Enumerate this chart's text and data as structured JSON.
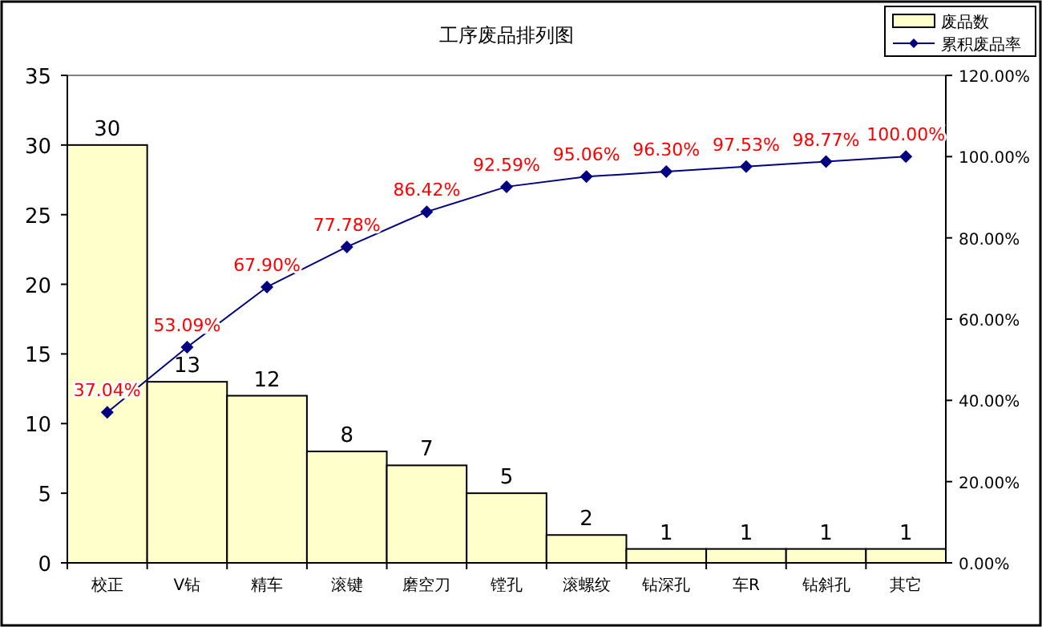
{
  "chart_data": {
    "type": "bar",
    "title": "工序废品排列图",
    "categories": [
      "校正",
      "V钻",
      "精车",
      "滚键",
      "磨空刀",
      "镗孔",
      "滚螺纹",
      "钻深孔",
      "车R",
      "钻斜孔",
      "其它"
    ],
    "series": [
      {
        "name": "废品数",
        "color": "#ffffcc",
        "values": [
          30,
          13,
          12,
          8,
          7,
          5,
          2,
          1,
          1,
          1,
          1
        ],
        "data_labels": true
      },
      {
        "name": "累积废品率",
        "type": "line",
        "axis": "y2",
        "color": "#000080",
        "marker": "diamond",
        "values": [
          37.04,
          53.09,
          67.9,
          77.78,
          86.42,
          92.59,
          95.06,
          96.3,
          97.53,
          98.77,
          100.0
        ],
        "value_labels": [
          "37.04%",
          "53.09%",
          "67.90%",
          "77.78%",
          "86.42%",
          "92.59%",
          "95.06%",
          "96.30%",
          "97.53%",
          "98.77%",
          "100.00%"
        ]
      }
    ],
    "ylim": [
      0,
      35
    ],
    "yticks": [
      0,
      5,
      10,
      15,
      20,
      25,
      30,
      35
    ],
    "y2lim": [
      0,
      120
    ],
    "y2ticks": [
      {
        "value": 0,
        "label": "0.00%"
      },
      {
        "value": 20,
        "label": "20.00%"
      },
      {
        "value": 40,
        "label": "40.00%"
      },
      {
        "value": 60,
        "label": "60.00%"
      },
      {
        "value": 80,
        "label": "80.00%"
      },
      {
        "value": 100,
        "label": "100.00%"
      },
      {
        "value": 120,
        "label": "120.00%"
      }
    ],
    "legend": "top right",
    "grid": false
  }
}
